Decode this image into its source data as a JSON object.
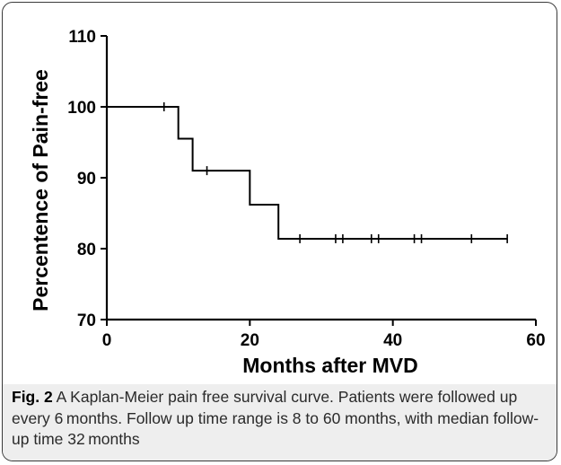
{
  "caption": {
    "figure_label": "Fig. 2",
    "text": "A Kaplan-Meier pain free survival curve. Patients were followed up every 6 months. Follow up time range is 8 to 60 months, with median follow-up time 32 months"
  },
  "chart_data": {
    "type": "line",
    "subtype": "kaplan-meier-step",
    "title": "",
    "xlabel": "Months after MVD",
    "ylabel": "Percentence of Pain-free",
    "xlim": [
      0,
      60
    ],
    "ylim": [
      70,
      110
    ],
    "x_ticks": [
      0,
      20,
      40,
      60
    ],
    "y_ticks": [
      70,
      80,
      90,
      100,
      110
    ],
    "grid": false,
    "legend": "none",
    "line_color": "#000000",
    "steps": [
      {
        "x": 0,
        "y": 100
      },
      {
        "x": 10,
        "y": 95.5
      },
      {
        "x": 12,
        "y": 91
      },
      {
        "x": 20,
        "y": 86.2
      },
      {
        "x": 24,
        "y": 81.4
      }
    ],
    "end_x": 56,
    "censored": [
      {
        "x": 8,
        "y": 100
      },
      {
        "x": 14,
        "y": 91
      },
      {
        "x": 27,
        "y": 81.4
      },
      {
        "x": 32,
        "y": 81.4
      },
      {
        "x": 33,
        "y": 81.4
      },
      {
        "x": 37,
        "y": 81.4
      },
      {
        "x": 38,
        "y": 81.4
      },
      {
        "x": 43,
        "y": 81.4
      },
      {
        "x": 44,
        "y": 81.4
      },
      {
        "x": 51,
        "y": 81.4
      },
      {
        "x": 56,
        "y": 81.4
      }
    ]
  }
}
